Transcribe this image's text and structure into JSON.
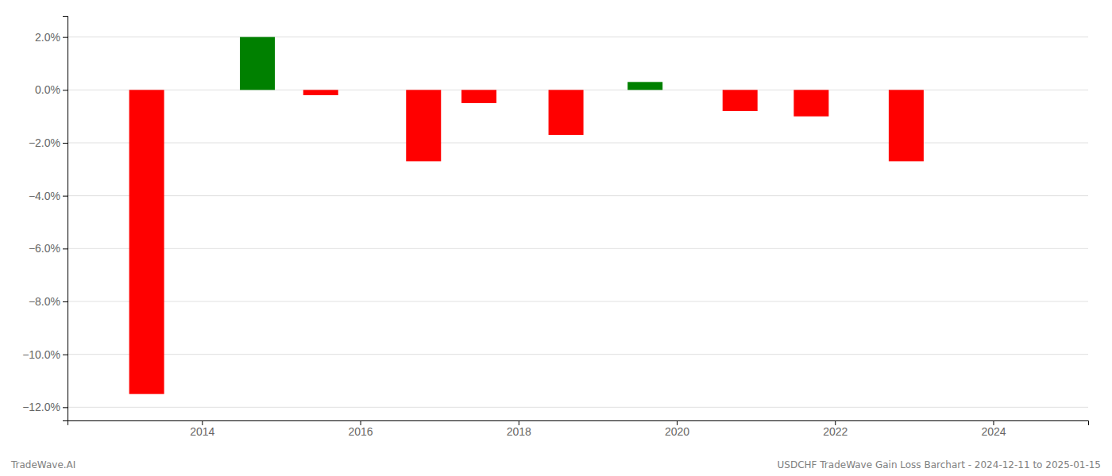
{
  "chart_data": {
    "type": "bar",
    "x": [
      2013.3,
      2014.7,
      2015.5,
      2016.8,
      2017.5,
      2018.6,
      2019.6,
      2020.8,
      2021.7,
      2022.9
    ],
    "values": [
      -11.5,
      2.0,
      -0.2,
      -2.7,
      -0.5,
      -1.7,
      0.3,
      -0.8,
      -1.0,
      -2.7
    ],
    "colors": [
      "#ff0000",
      "#008000",
      "#ff0000",
      "#ff0000",
      "#ff0000",
      "#ff0000",
      "#008000",
      "#ff0000",
      "#ff0000",
      "#ff0000"
    ],
    "xlim": [
      2012.3,
      2025.2
    ],
    "ylim": [
      -12.5,
      2.8
    ],
    "xticks": [
      2014,
      2016,
      2018,
      2020,
      2022,
      2024
    ],
    "yticks": [
      {
        "value": 2.0,
        "label": "2.0%"
      },
      {
        "value": 0.0,
        "label": "0.0%"
      },
      {
        "value": -2.0,
        "label": "−2.0%"
      },
      {
        "value": -4.0,
        "label": "−4.0%"
      },
      {
        "value": -6.0,
        "label": "−6.0%"
      },
      {
        "value": -8.0,
        "label": "−8.0%"
      },
      {
        "value": -10.0,
        "label": "−10.0%"
      },
      {
        "value": -12.0,
        "label": "−12.0%"
      }
    ],
    "grid": true,
    "annotations": [
      "TradeWave.AI",
      "USDCHF TradeWave Gain Loss Barchart - 2024-12-11 to 2025-01-15"
    ]
  }
}
